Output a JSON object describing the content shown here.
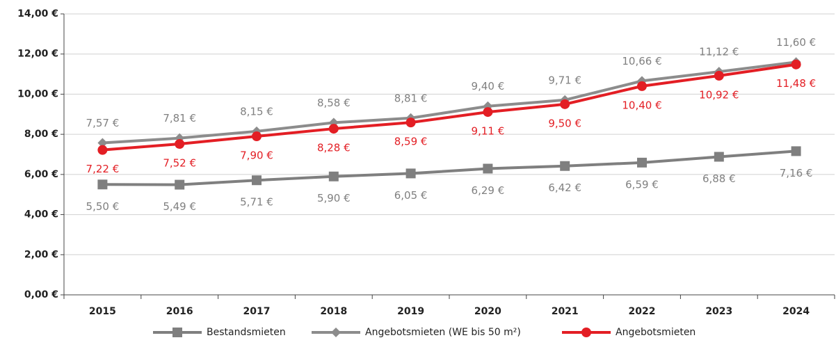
{
  "chart_data": {
    "type": "line",
    "categories": [
      "2015",
      "2016",
      "2017",
      "2018",
      "2019",
      "2020",
      "2021",
      "2022",
      "2023",
      "2024"
    ],
    "ylim": [
      0,
      14
    ],
    "yticks": [
      {
        "value": 0,
        "label": "0,00 €"
      },
      {
        "value": 2,
        "label": "2,00 €"
      },
      {
        "value": 4,
        "label": "4,00 €"
      },
      {
        "value": 6,
        "label": "6,00 €"
      },
      {
        "value": 8,
        "label": "8,00 €"
      },
      {
        "value": 10,
        "label": "10,00 €"
      },
      {
        "value": 12,
        "label": "12,00 €"
      },
      {
        "value": 14,
        "label": "14,00 €"
      }
    ],
    "grid": true,
    "legend": "bottom",
    "series": [
      {
        "name": "Bestandsmieten",
        "color": "#7f7f7f",
        "marker": "square",
        "values": [
          5.5,
          5.49,
          5.71,
          5.9,
          6.05,
          6.29,
          6.42,
          6.59,
          6.88,
          7.16
        ],
        "value_labels": [
          "5,50 €",
          "5,49 €",
          "5,71 €",
          "5,90 €",
          "6,05 €",
          "6,29 €",
          "6,42 €",
          "6,59 €",
          "6,88 €",
          "7,16 €"
        ]
      },
      {
        "name": "Angebotsmieten (WE bis 50 m²)",
        "color": "#8c8c8c",
        "marker": "diamond",
        "values": [
          7.57,
          7.81,
          8.15,
          8.58,
          8.81,
          9.4,
          9.71,
          10.66,
          11.12,
          11.6
        ],
        "value_labels": [
          "7,57 €",
          "7,81 €",
          "8,15 €",
          "8,58 €",
          "8,81 €",
          "9,40 €",
          "9,71 €",
          "10,66 €",
          "11,12 €",
          "11,60 €"
        ]
      },
      {
        "name": "Angebotsmieten",
        "color": "#e31e24",
        "marker": "circle",
        "values": [
          7.22,
          7.52,
          7.9,
          8.28,
          8.59,
          9.11,
          9.5,
          10.4,
          10.92,
          11.48
        ],
        "value_labels": [
          "7,22 €",
          "7,52 €",
          "7,90 €",
          "8,28 €",
          "8,59 €",
          "9,11 €",
          "9,50 €",
          "10,40 €",
          "10,92 €",
          "11,48 €"
        ]
      }
    ]
  }
}
